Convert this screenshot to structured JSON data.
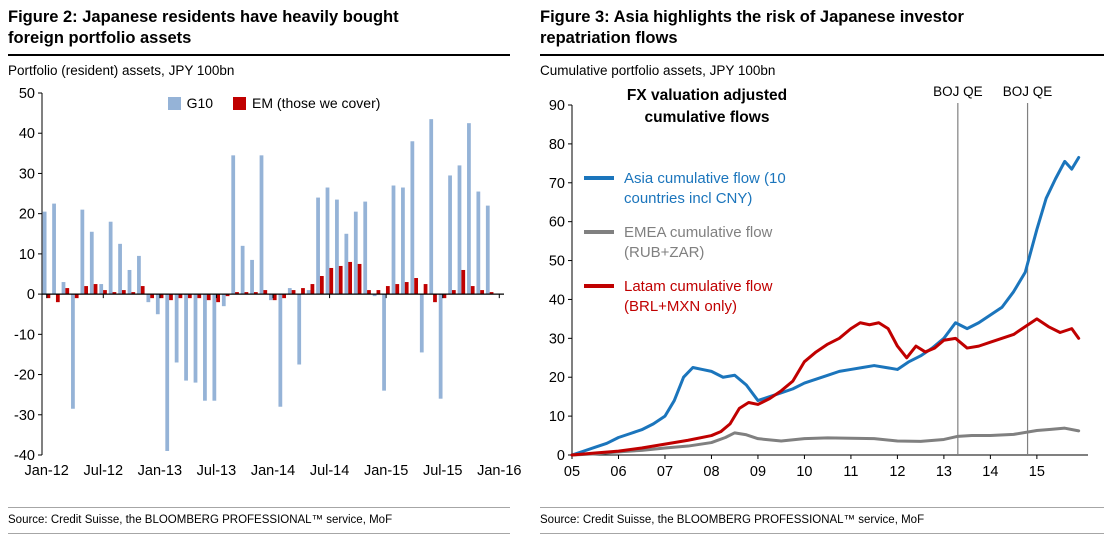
{
  "chart_data": [
    {
      "id": "figure2",
      "type": "bar",
      "title": "Figure 2: Japanese residents have heavily bought foreign portfolio assets",
      "subtitle": "Portfolio (resident) assets, JPY 100bn",
      "source": "Source: Credit Suisse, the BLOOMBERG PROFESSIONAL™ service, MoF",
      "ylim": [
        -40,
        50
      ],
      "ytick_step": 10,
      "grid": false,
      "legend_position": "top-center",
      "xtick_labels": [
        "Jan-12",
        "Jul-12",
        "Jan-13",
        "Jul-13",
        "Jan-14",
        "Jul-14",
        "Jan-15",
        "Jul-15",
        "Jan-16"
      ],
      "xtick_month_interval": 6,
      "series": [
        {
          "name": "G10",
          "color": "#95b3d7",
          "values": [
            20.5,
            22.5,
            3,
            -28.5,
            21,
            15.5,
            2.5,
            18,
            12.5,
            6,
            9.5,
            -2,
            -5,
            -39,
            -17,
            -21.5,
            -22,
            -26.5,
            -26.5,
            -3,
            34.5,
            12,
            8.5,
            34.5,
            -1.5,
            -28,
            1.5,
            -17.5,
            1,
            24,
            26.5,
            23.5,
            15,
            20.5,
            23,
            -0.5,
            -24,
            27,
            26.5,
            38,
            -14.5,
            43.5,
            -26,
            29.5,
            32,
            42.5,
            25.5,
            22
          ]
        },
        {
          "name": "EM (those we cover)",
          "color": "#c00000",
          "values": [
            -1,
            -2,
            1.5,
            -1,
            2,
            2.5,
            1,
            0.5,
            1,
            0.5,
            2,
            -1,
            -1,
            -1.5,
            -1,
            -1,
            -1,
            -1.5,
            -2,
            -0.5,
            0.5,
            0.5,
            0.5,
            1,
            -1.5,
            -1,
            1,
            1.5,
            2.5,
            4.5,
            6.5,
            7,
            8,
            7.5,
            1,
            1,
            2,
            2.5,
            3,
            4,
            2.5,
            -2,
            -1,
            1,
            6,
            2,
            1,
            0.5
          ]
        }
      ]
    },
    {
      "id": "figure3",
      "type": "line",
      "title": "Figure 3: Asia highlights the risk of Japanese investor repatriation flows",
      "subtitle": "Cumulative portfolio assets, JPY 100bn",
      "source": "Source: Credit Suisse, the BLOOMBERG PROFESSIONAL™ service, MoF",
      "annotation": "FX valuation adjusted cumulative flows",
      "ylim": [
        0,
        90
      ],
      "ytick_step": 10,
      "xlim": [
        2005,
        2016.1
      ],
      "grid": false,
      "legend_position": "left-inside",
      "xticks": [
        2005,
        2006,
        2007,
        2008,
        2009,
        2010,
        2011,
        2012,
        2013,
        2014,
        2015
      ],
      "xtick_labels": [
        "05",
        "06",
        "07",
        "08",
        "09",
        "10",
        "11",
        "12",
        "13",
        "14",
        "15"
      ],
      "vlines": [
        {
          "x": 2013.3,
          "label": "BOJ QE",
          "color": "#808080"
        },
        {
          "x": 2014.8,
          "label": "BOJ QE",
          "color": "#808080"
        }
      ],
      "series": [
        {
          "name": "Asia cumulative flow (10 countries incl CNY)",
          "color": "#1b75bc",
          "x": [
            2005,
            2005.25,
            2005.5,
            2005.75,
            2006,
            2006.25,
            2006.5,
            2006.75,
            2007,
            2007.2,
            2007.4,
            2007.6,
            2007.8,
            2008,
            2008.25,
            2008.5,
            2008.75,
            2009,
            2009.25,
            2009.5,
            2009.75,
            2010,
            2010.25,
            2010.5,
            2010.75,
            2011,
            2011.25,
            2011.5,
            2011.75,
            2012,
            2012.25,
            2012.5,
            2012.75,
            2013,
            2013.25,
            2013.5,
            2013.75,
            2014,
            2014.25,
            2014.5,
            2014.75,
            2015,
            2015.2,
            2015.4,
            2015.6,
            2015.75,
            2015.9
          ],
          "y": [
            0,
            1,
            2,
            3,
            4.5,
            5.5,
            6.5,
            8,
            10,
            14,
            20,
            22.5,
            22,
            21.5,
            20,
            20.5,
            18,
            14,
            15,
            16,
            17,
            18.5,
            19.5,
            20.5,
            21.5,
            22,
            22.5,
            23,
            22.5,
            22,
            24,
            25.5,
            27.5,
            30,
            34,
            32.5,
            34,
            36,
            38,
            42,
            47,
            58,
            66,
            71,
            75.5,
            73.5,
            76.5
          ]
        },
        {
          "name": "EMEA cumulative flow (RUB+ZAR)",
          "color": "#808080",
          "x": [
            2005,
            2005.5,
            2006,
            2006.5,
            2007,
            2007.5,
            2008,
            2008.3,
            2008.5,
            2008.75,
            2009,
            2009.5,
            2010,
            2010.5,
            2011,
            2011.5,
            2012,
            2012.5,
            2013,
            2013.3,
            2013.6,
            2014,
            2014.5,
            2015,
            2015.3,
            2015.6,
            2015.9
          ],
          "y": [
            0,
            0.3,
            0.8,
            1.2,
            1.8,
            2.3,
            3.2,
            4.5,
            5.7,
            5.2,
            4.2,
            3.6,
            4.2,
            4.4,
            4.3,
            4.2,
            3.6,
            3.5,
            4,
            4.8,
            5,
            5,
            5.3,
            6.3,
            6.6,
            6.9,
            6.2
          ]
        },
        {
          "name": "Latam cumulative flow (BRL+MXN only)",
          "color": "#c00000",
          "x": [
            2005,
            2005.5,
            2006,
            2006.5,
            2007,
            2007.5,
            2008,
            2008.2,
            2008.4,
            2008.6,
            2008.8,
            2009,
            2009.25,
            2009.5,
            2009.75,
            2010,
            2010.25,
            2010.5,
            2010.75,
            2011,
            2011.2,
            2011.4,
            2011.6,
            2011.8,
            2012,
            2012.2,
            2012.4,
            2012.6,
            2012.8,
            2013,
            2013.25,
            2013.5,
            2013.75,
            2014,
            2014.25,
            2014.5,
            2014.75,
            2015,
            2015.25,
            2015.5,
            2015.75,
            2015.9
          ],
          "y": [
            0,
            0.5,
            1,
            1.8,
            2.8,
            3.8,
            5,
            6,
            8,
            12,
            13.5,
            13,
            14.5,
            16.5,
            19,
            24,
            26.5,
            28.5,
            30,
            32.5,
            34,
            33.5,
            34,
            32.5,
            28,
            25,
            28,
            26.5,
            27.5,
            29.5,
            30,
            27.5,
            28,
            29,
            30,
            31,
            33,
            35,
            33,
            31.5,
            32.5,
            30
          ]
        }
      ]
    }
  ]
}
